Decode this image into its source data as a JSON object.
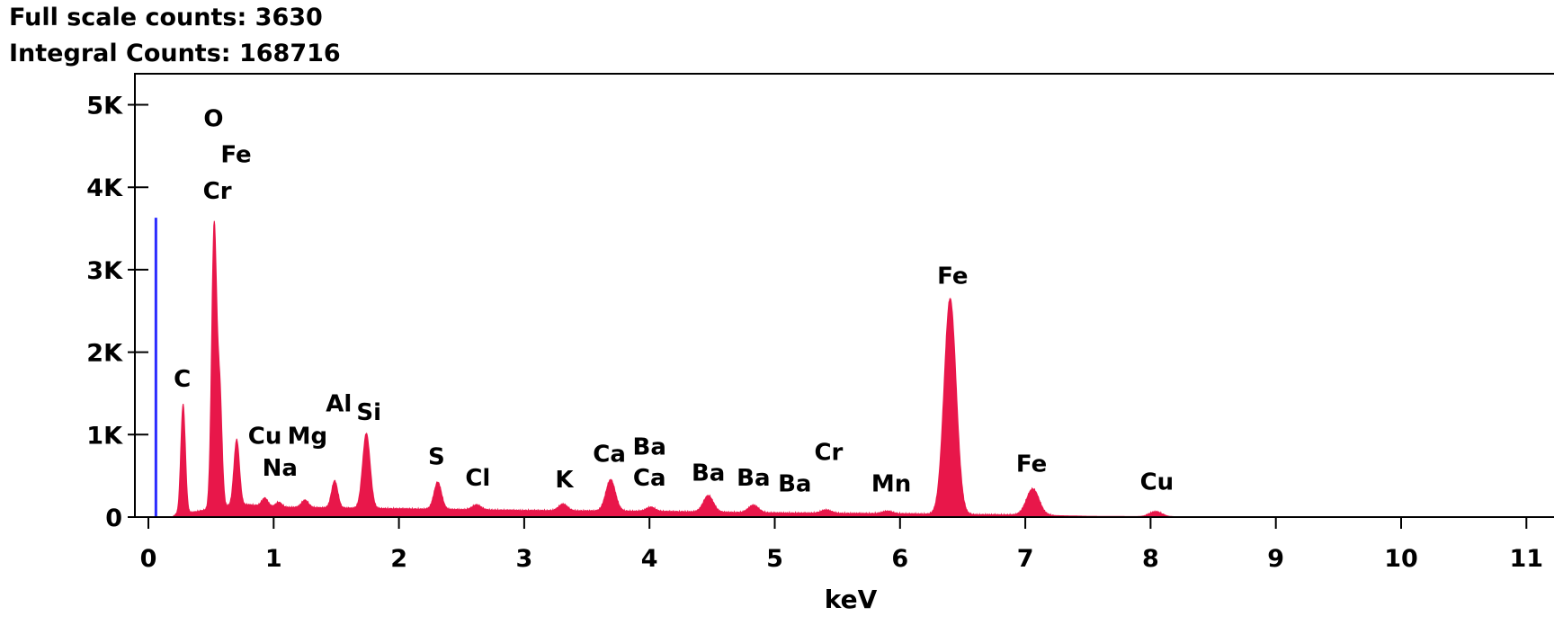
{
  "header": {
    "full_scale_label": "Full scale counts: 3630",
    "integral_label": "Integral Counts: 168716"
  },
  "chart_data": {
    "type": "area",
    "title": "",
    "xlabel": "keV",
    "ylabel": "",
    "xlim": [
      0,
      11.5
    ],
    "ylim": [
      0,
      5000
    ],
    "x_ticks": [
      0,
      1,
      2,
      3,
      4,
      5,
      6,
      7,
      8,
      9,
      10,
      11
    ],
    "x_tick_labels": [
      "0",
      "1",
      "2",
      "3",
      "4",
      "5",
      "6",
      "7",
      "8",
      "9",
      "10",
      "11"
    ],
    "y_ticks": [
      0,
      1000,
      2000,
      3000,
      4000,
      5000
    ],
    "y_tick_labels": [
      "0",
      "1K",
      "2K",
      "3K",
      "4K",
      "5K"
    ],
    "full_scale_counts": 3630,
    "integral_counts": 168716,
    "series": [
      {
        "color": "#e8174a",
        "baseline": [
          [
            0.2,
            20
          ],
          [
            0.4,
            70
          ],
          [
            0.6,
            130
          ],
          [
            0.8,
            150
          ],
          [
            1.0,
            120
          ],
          [
            1.5,
            110
          ],
          [
            2.0,
            100
          ],
          [
            2.5,
            90
          ],
          [
            3.0,
            80
          ],
          [
            3.5,
            75
          ],
          [
            4.0,
            70
          ],
          [
            4.5,
            60
          ],
          [
            5.0,
            50
          ],
          [
            5.5,
            45
          ],
          [
            6.0,
            40
          ],
          [
            6.5,
            30
          ],
          [
            7.0,
            25
          ],
          [
            7.5,
            10
          ],
          [
            8.0,
            5
          ],
          [
            11.5,
            0
          ]
        ],
        "peaks": [
          {
            "center": 0.277,
            "height": 1330,
            "width": 0.018
          },
          {
            "center": 0.525,
            "height": 3420,
            "width": 0.02
          },
          {
            "center": 0.57,
            "height": 1350,
            "width": 0.018
          },
          {
            "center": 0.705,
            "height": 800,
            "width": 0.022
          },
          {
            "center": 0.93,
            "height": 100,
            "width": 0.025
          },
          {
            "center": 1.04,
            "height": 60,
            "width": 0.025
          },
          {
            "center": 1.25,
            "height": 90,
            "width": 0.028
          },
          {
            "center": 1.487,
            "height": 330,
            "width": 0.025
          },
          {
            "center": 1.74,
            "height": 910,
            "width": 0.03
          },
          {
            "center": 2.31,
            "height": 330,
            "width": 0.03
          },
          {
            "center": 2.62,
            "height": 60,
            "width": 0.035
          },
          {
            "center": 3.31,
            "height": 80,
            "width": 0.035
          },
          {
            "center": 3.69,
            "height": 380,
            "width": 0.038
          },
          {
            "center": 4.01,
            "height": 50,
            "width": 0.035
          },
          {
            "center": 4.47,
            "height": 200,
            "width": 0.04
          },
          {
            "center": 4.83,
            "height": 90,
            "width": 0.04
          },
          {
            "center": 5.41,
            "height": 40,
            "width": 0.04
          },
          {
            "center": 5.9,
            "height": 30,
            "width": 0.04
          },
          {
            "center": 6.4,
            "height": 2620,
            "width": 0.048
          },
          {
            "center": 7.06,
            "height": 320,
            "width": 0.05
          },
          {
            "center": 8.04,
            "height": 60,
            "width": 0.05
          }
        ]
      },
      {
        "name": "marker",
        "color": "#2b2bff",
        "x": 0.06,
        "value": 3630
      }
    ],
    "peak_labels": [
      {
        "text": "O",
        "x": 0.52,
        "y": 4740
      },
      {
        "text": "Fe",
        "x": 0.7,
        "y": 4300
      },
      {
        "text": "Cr",
        "x": 0.55,
        "y": 3860
      },
      {
        "text": "C",
        "x": 0.27,
        "y": 1580
      },
      {
        "text": "Cu",
        "x": 0.93,
        "y": 890
      },
      {
        "text": "Mg",
        "x": 1.27,
        "y": 890
      },
      {
        "text": "Na",
        "x": 1.05,
        "y": 500
      },
      {
        "text": "Al",
        "x": 1.52,
        "y": 1280
      },
      {
        "text": "Si",
        "x": 1.76,
        "y": 1180
      },
      {
        "text": "S",
        "x": 2.3,
        "y": 640
      },
      {
        "text": "Cl",
        "x": 2.63,
        "y": 380
      },
      {
        "text": "K",
        "x": 3.32,
        "y": 360
      },
      {
        "text": "Ca",
        "x": 3.68,
        "y": 670
      },
      {
        "text": "Ba",
        "x": 4.0,
        "y": 760
      },
      {
        "text": "Ca",
        "x": 4.0,
        "y": 380
      },
      {
        "text": "Ba",
        "x": 4.47,
        "y": 440
      },
      {
        "text": "Ba",
        "x": 4.83,
        "y": 380
      },
      {
        "text": "Ba",
        "x": 5.16,
        "y": 310
      },
      {
        "text": "Cr",
        "x": 5.43,
        "y": 690
      },
      {
        "text": "Mn",
        "x": 5.93,
        "y": 310
      },
      {
        "text": "Fe",
        "x": 6.42,
        "y": 2830
      },
      {
        "text": "Fe",
        "x": 7.05,
        "y": 550
      },
      {
        "text": "Cu",
        "x": 8.05,
        "y": 330
      }
    ]
  }
}
